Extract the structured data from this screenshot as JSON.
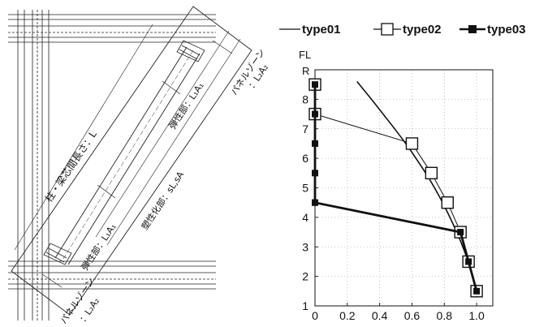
{
  "diagram": {
    "column_beam_length_label": "柱・梁芯間長さ：L",
    "elastic_top_label": "弾性部：L₁A₁",
    "plastic_label": "塑性化部：sL,sA",
    "elastic_bottom_label": "弾性部：L₁A₁",
    "panel_zone_top_line1": "パネルゾーン",
    "panel_zone_top_line2": "：L₂A₂",
    "panel_zone_bottom_line1": "パネルゾーン",
    "panel_zone_bottom_line2": "：L₂A₂"
  },
  "chart_data": {
    "type": "line",
    "title": "",
    "xlabel": "R",
    "ylabel": "FL",
    "xlim": [
      0,
      1.1
    ],
    "ylim": [
      1,
      9
    ],
    "x_ticks": [
      "0",
      "0.2",
      "0.4",
      "0.6",
      "0.8",
      "1.0"
    ],
    "y_ticks": [
      "1",
      "2",
      "3",
      "4",
      "5",
      "6",
      "7",
      "8"
    ],
    "grid": true,
    "legend_position": "top",
    "series": [
      {
        "name": "type01",
        "marker": "none",
        "line": "curve",
        "x": [
          0.26,
          0.35,
          0.45,
          0.55,
          0.65,
          0.72,
          0.8,
          0.87,
          0.93,
          0.97,
          1.0
        ],
        "y": [
          8.6,
          8.0,
          7.3,
          6.6,
          5.8,
          5.2,
          4.4,
          3.6,
          2.8,
          2.1,
          1.5
        ]
      },
      {
        "name": "type02",
        "marker": "open-square",
        "line": "thin",
        "x": [
          0.0,
          0.0,
          0.6,
          0.72,
          0.82,
          0.9,
          0.95,
          1.0
        ],
        "y": [
          8.5,
          7.5,
          6.5,
          5.5,
          4.5,
          3.5,
          2.5,
          1.5
        ]
      },
      {
        "name": "type03",
        "marker": "filled-square",
        "line": "thick",
        "x": [
          0.0,
          0.0,
          0.0,
          0.0,
          0.0,
          0.0,
          0.9,
          0.95,
          1.0
        ],
        "y": [
          8.5,
          7.5,
          6.5,
          5.5,
          4.5,
          4.5,
          3.5,
          2.5,
          1.5
        ]
      }
    ]
  }
}
